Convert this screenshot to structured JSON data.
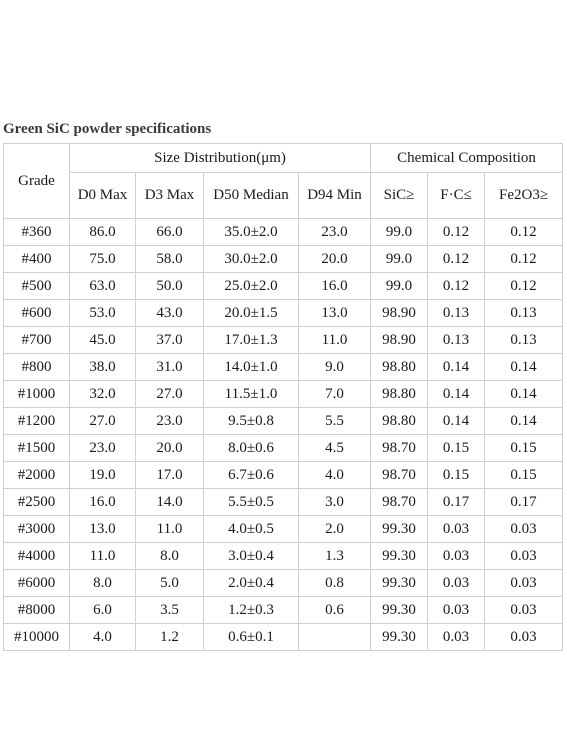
{
  "title": "Green SiC powder specifications",
  "headers": {
    "grade": "Grade",
    "size_group": "Size Distribution(μm)",
    "chem_group": "Chemical Composition",
    "d0": "D0 Max",
    "d3": "D3 Max",
    "d50": "D50 Median",
    "d94": "D94 Min",
    "sic": "SiC≥",
    "fc": "F·C≤",
    "fe": "Fe2O3≥"
  },
  "rows": [
    {
      "grade": "#360",
      "d0": "86.0",
      "d3": "66.0",
      "d50": "35.0±2.0",
      "d94": "23.0",
      "sic": "99.0",
      "fc": "0.12",
      "fe": "0.12"
    },
    {
      "grade": "#400",
      "d0": "75.0",
      "d3": "58.0",
      "d50": "30.0±2.0",
      "d94": "20.0",
      "sic": "99.0",
      "fc": "0.12",
      "fe": "0.12"
    },
    {
      "grade": "#500",
      "d0": "63.0",
      "d3": "50.0",
      "d50": "25.0±2.0",
      "d94": "16.0",
      "sic": "99.0",
      "fc": "0.12",
      "fe": "0.12"
    },
    {
      "grade": "#600",
      "d0": "53.0",
      "d3": "43.0",
      "d50": "20.0±1.5",
      "d94": "13.0",
      "sic": "98.90",
      "fc": "0.13",
      "fe": "0.13"
    },
    {
      "grade": "#700",
      "d0": "45.0",
      "d3": "37.0",
      "d50": "17.0±1.3",
      "d94": "11.0",
      "sic": "98.90",
      "fc": "0.13",
      "fe": "0.13"
    },
    {
      "grade": "#800",
      "d0": "38.0",
      "d3": "31.0",
      "d50": "14.0±1.0",
      "d94": "9.0",
      "sic": "98.80",
      "fc": "0.14",
      "fe": "0.14"
    },
    {
      "grade": "#1000",
      "d0": "32.0",
      "d3": "27.0",
      "d50": "11.5±1.0",
      "d94": "7.0",
      "sic": "98.80",
      "fc": "0.14",
      "fe": "0.14"
    },
    {
      "grade": "#1200",
      "d0": "27.0",
      "d3": "23.0",
      "d50": "9.5±0.8",
      "d94": "5.5",
      "sic": "98.80",
      "fc": "0.14",
      "fe": "0.14"
    },
    {
      "grade": "#1500",
      "d0": "23.0",
      "d3": "20.0",
      "d50": "8.0±0.6",
      "d94": "4.5",
      "sic": "98.70",
      "fc": "0.15",
      "fe": "0.15"
    },
    {
      "grade": "#2000",
      "d0": "19.0",
      "d3": "17.0",
      "d50": "6.7±0.6",
      "d94": "4.0",
      "sic": "98.70",
      "fc": "0.15",
      "fe": "0.15"
    },
    {
      "grade": "#2500",
      "d0": "16.0",
      "d3": "14.0",
      "d50": "5.5±0.5",
      "d94": "3.0",
      "sic": "98.70",
      "fc": "0.17",
      "fe": "0.17"
    },
    {
      "grade": "#3000",
      "d0": "13.0",
      "d3": "11.0",
      "d50": "4.0±0.5",
      "d94": "2.0",
      "sic": "99.30",
      "fc": "0.03",
      "fe": "0.03"
    },
    {
      "grade": "#4000",
      "d0": "11.0",
      "d3": "8.0",
      "d50": "3.0±0.4",
      "d94": "1.3",
      "sic": "99.30",
      "fc": "0.03",
      "fe": "0.03"
    },
    {
      "grade": "#6000",
      "d0": "8.0",
      "d3": "5.0",
      "d50": "2.0±0.4",
      "d94": "0.8",
      "sic": "99.30",
      "fc": "0.03",
      "fe": "0.03"
    },
    {
      "grade": "#8000",
      "d0": "6.0",
      "d3": "3.5",
      "d50": "1.2±0.3",
      "d94": "0.6",
      "sic": "99.30",
      "fc": "0.03",
      "fe": "0.03"
    },
    {
      "grade": "#10000",
      "d0": "4.0",
      "d3": "1.2",
      "d50": "0.6±0.1",
      "d94": "",
      "sic": "99.30",
      "fc": "0.03",
      "fe": "0.03"
    }
  ]
}
